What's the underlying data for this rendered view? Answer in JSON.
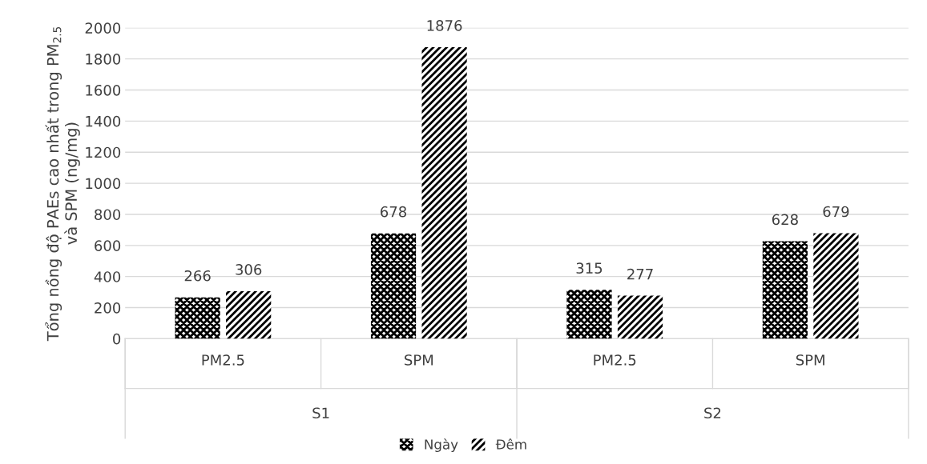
{
  "chart_data": {
    "type": "bar",
    "ylabel": "Tổng nồng độ PAEs cao nhất trong PM$_{2.5}$\nvà SPM (ng/mg)",
    "categories": [
      "PM2.5",
      "SPM",
      "PM2.5",
      "SPM"
    ],
    "series": [
      {
        "name": "Ngày",
        "color": "#000000",
        "values": [
          266,
          678,
          315,
          628
        ]
      },
      {
        "name": "Đêm",
        "color": "#000000",
        "values": [
          306,
          1876,
          277,
          679
        ]
      }
    ],
    "annotations": [
      "S1",
      "S2"
    ],
    "ylim": [
      0,
      2000
    ],
    "yticks": [
      0,
      200,
      400,
      600,
      800,
      1000,
      1200,
      1400,
      1600,
      1800,
      2000
    ],
    "grid": "y",
    "legend": "bottom",
    "data_labels": true
  }
}
